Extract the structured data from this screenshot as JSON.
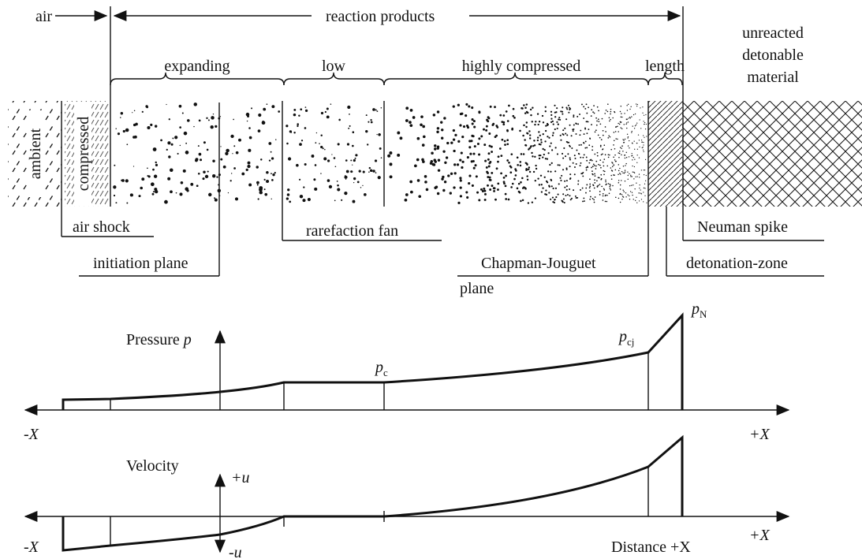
{
  "top": {
    "air": "air",
    "reaction_products": "reaction products"
  },
  "zones": {
    "expanding": "expanding",
    "low": "low",
    "highly_compressed": "highly compressed",
    "length": "length",
    "unreacted": [
      "unreacted",
      "detonable",
      "material"
    ],
    "ambient": "ambient",
    "compressed": "compressed"
  },
  "labels": {
    "air_shock": "air shock",
    "initiation_plane": "initiation plane",
    "rarefaction_fan": "rarefaction fan",
    "chapman_jouguet": [
      "Chapman-Jouguet",
      "plane"
    ],
    "neuman_spike": "Neuman spike",
    "detonation_zone": "detonation-zone"
  },
  "pressure": {
    "title": {
      "text": "Pressure",
      "symbol": "p"
    },
    "pc": {
      "symbol": "p",
      "sub": "c"
    },
    "pcj": {
      "symbol": "p",
      "sub": "cj"
    },
    "pN": {
      "symbol": "p",
      "sub": "N"
    },
    "minus_x": "-X",
    "plus_x": "+X"
  },
  "velocity": {
    "title": "Velocity",
    "plus_u": "+u",
    "minus_u": "-u",
    "minus_x": "-X",
    "distance": "Distance +X",
    "plus_x": "+X"
  }
}
